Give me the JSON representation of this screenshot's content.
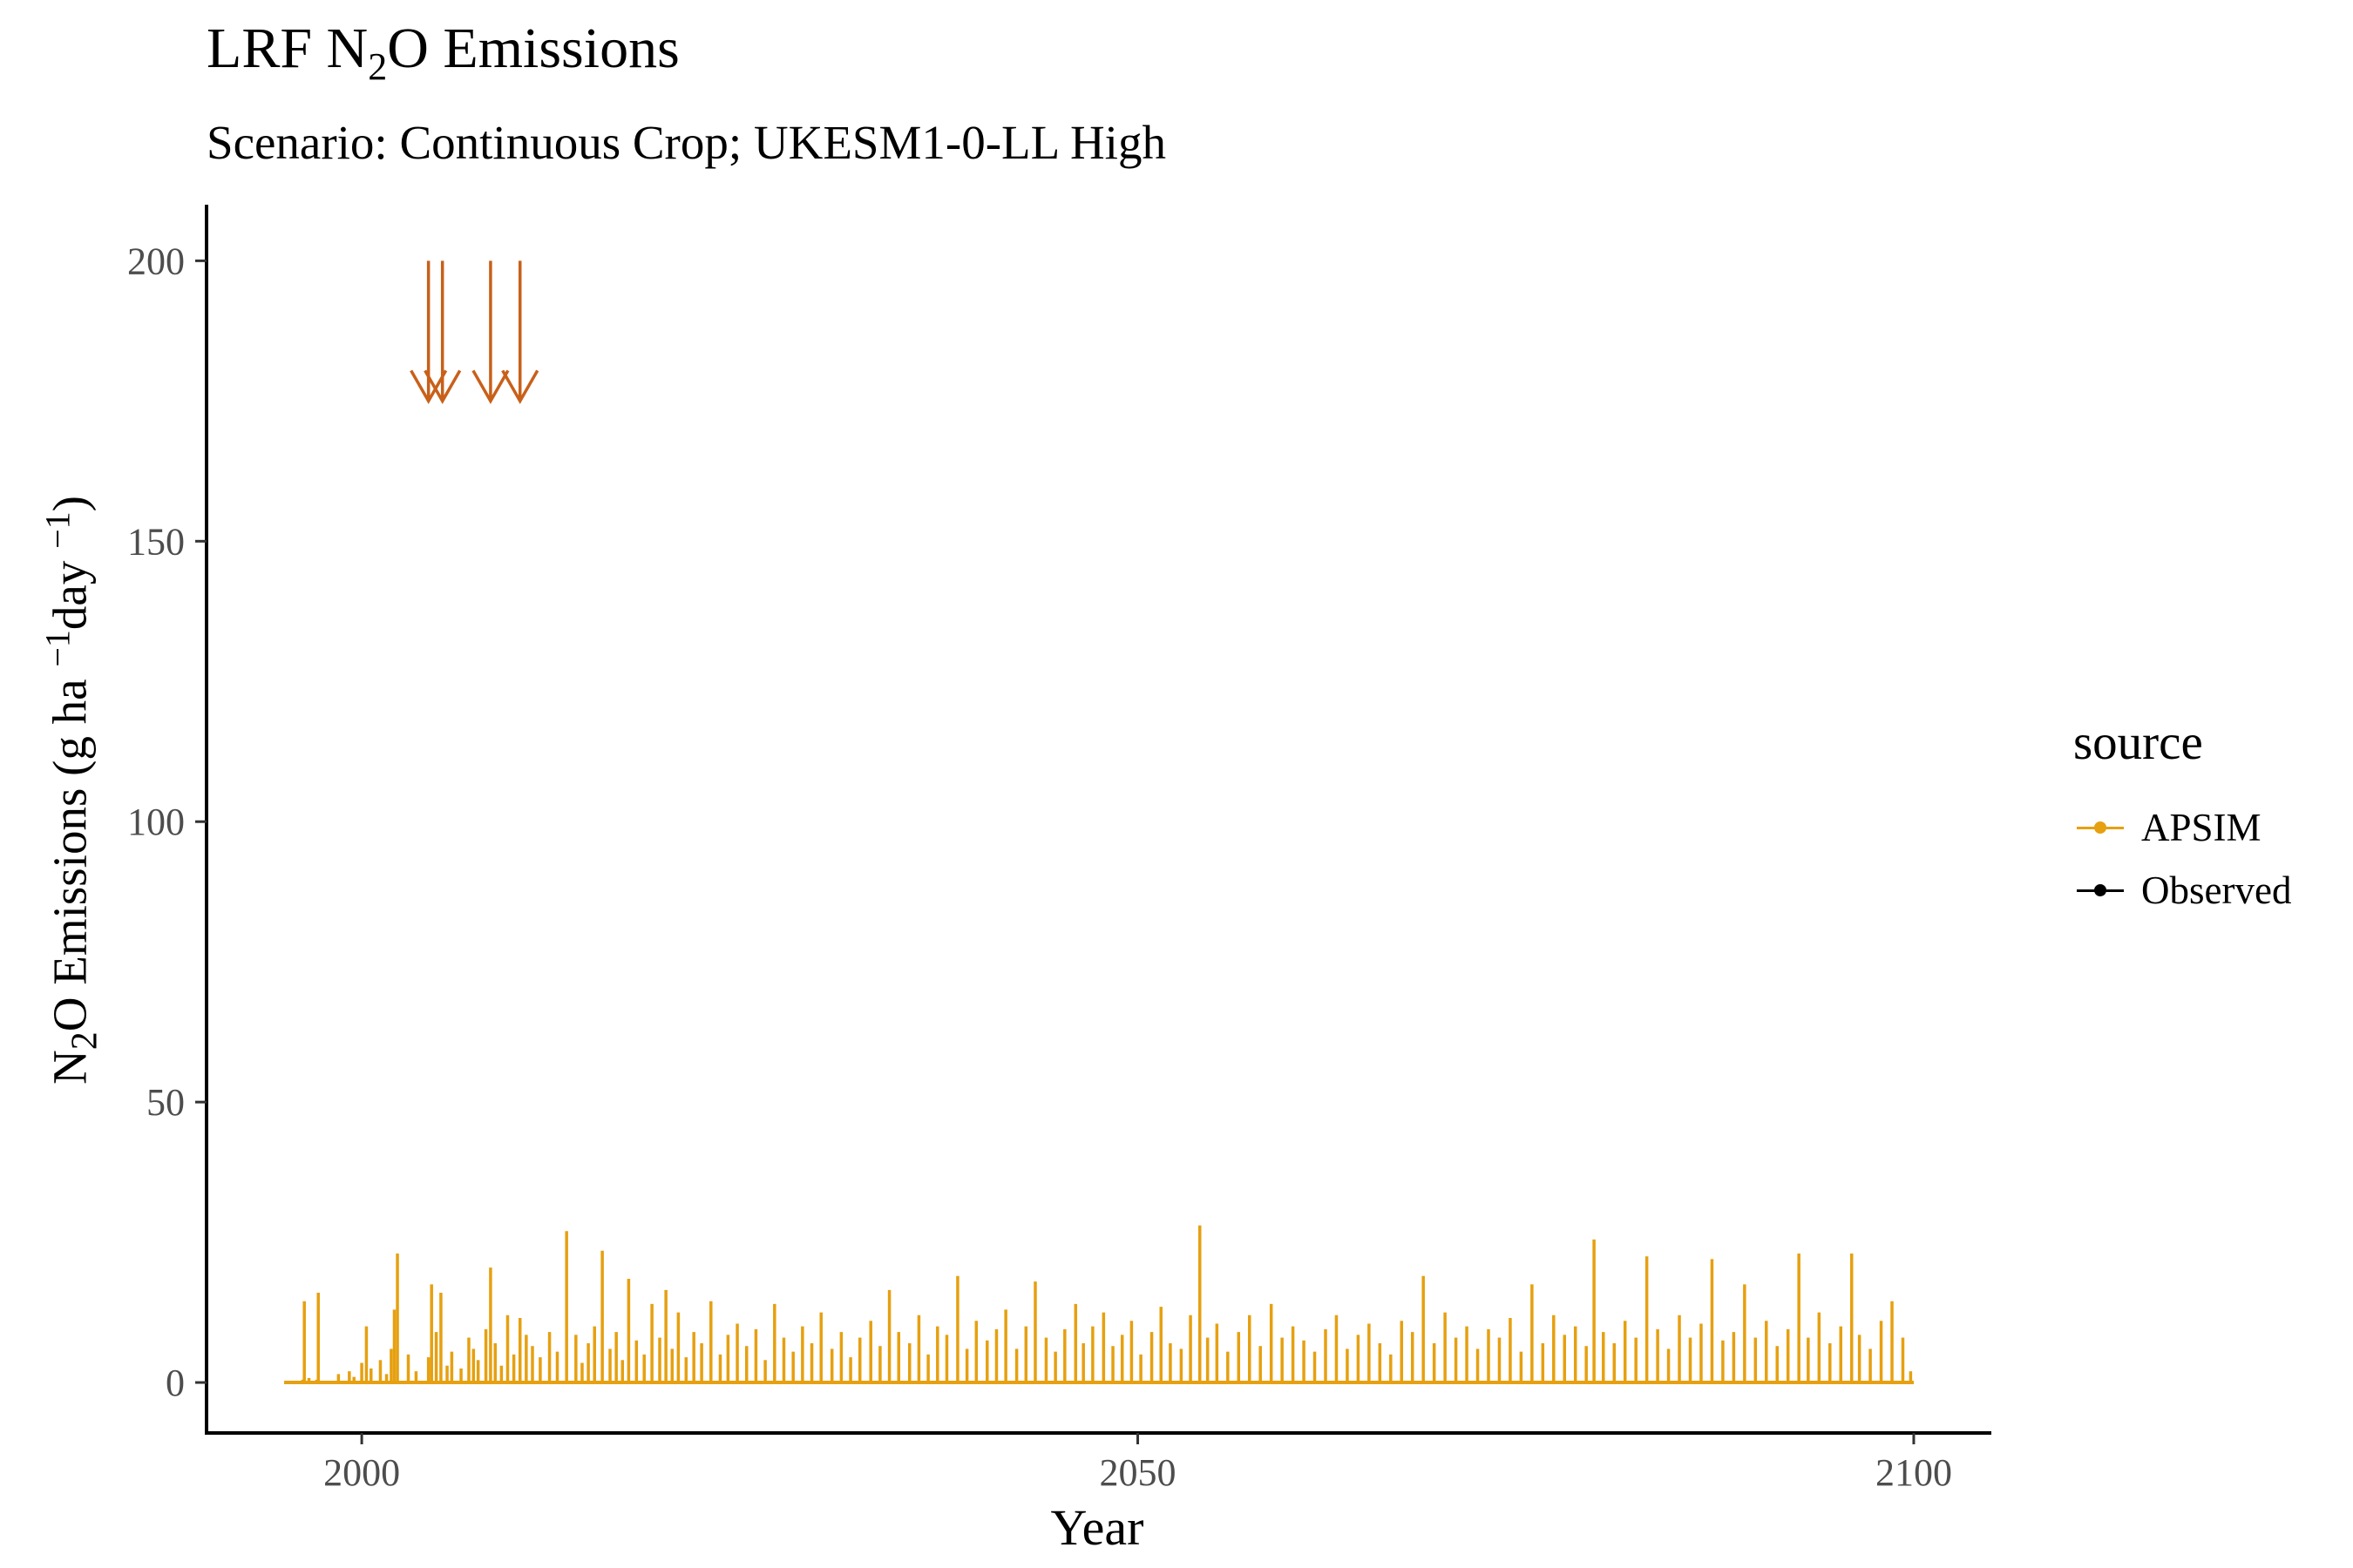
{
  "title": {
    "prefix": "LRF N",
    "subscript": "2",
    "suffix": "O Emissions"
  },
  "subtitle": "Scenario: Continuous Crop; UKESM1-0-LL High",
  "y_axis_label": {
    "part1": "N",
    "sub": "2",
    "part2": "O Emissions (g ha ",
    "sup1": "−1",
    "part3": "day ",
    "sup2": "−1",
    "part4": ")"
  },
  "x_axis_label": "Year",
  "legend": {
    "title": "source",
    "items": [
      {
        "label": "APSIM",
        "color": "#E6A010"
      },
      {
        "label": "Observed",
        "color": "#000000"
      }
    ]
  },
  "chart_data": {
    "type": "line",
    "x_range": [
      1990,
      2105
    ],
    "y_range": [
      -9,
      210
    ],
    "x_ticks": [
      {
        "value": 2000,
        "label": "2000"
      },
      {
        "value": 2050,
        "label": "2050"
      },
      {
        "value": 2100,
        "label": "2100"
      }
    ],
    "y_ticks": [
      {
        "value": 0,
        "label": "0"
      },
      {
        "value": 50,
        "label": "50"
      },
      {
        "value": 100,
        "label": "100"
      },
      {
        "value": 150,
        "label": "150"
      },
      {
        "value": 200,
        "label": "200"
      }
    ],
    "grid": false,
    "legend_position": "right",
    "series": [
      {
        "name": "APSIM",
        "color": "#E6A010",
        "x": [
          1995.0,
          1996.2,
          1996.3,
          1996.6,
          1997.1,
          1997.2,
          1998.5,
          1999.2,
          1999.5,
          2000.0,
          2000.3,
          2000.6,
          2001.2,
          2001.6,
          2001.9,
          2002.1,
          2002.3,
          2003.0,
          2003.5,
          2004.3,
          2004.5,
          2004.8,
          2005.1,
          2005.5,
          2005.8,
          2006.4,
          2006.9,
          2007.2,
          2007.5,
          2008.0,
          2008.3,
          2008.6,
          2009.0,
          2009.4,
          2009.8,
          2010.2,
          2010.6,
          2011.0,
          2011.5,
          2012.1,
          2012.6,
          2013.2,
          2013.8,
          2014.2,
          2014.6,
          2015.0,
          2015.5,
          2016.0,
          2016.4,
          2016.8,
          2017.2,
          2017.7,
          2018.2,
          2018.7,
          2019.2,
          2019.6,
          2020.0,
          2020.4,
          2020.9,
          2021.4,
          2021.9,
          2022.5,
          2023.1,
          2023.6,
          2024.2,
          2024.8,
          2025.4,
          2026.0,
          2026.6,
          2027.2,
          2027.8,
          2028.4,
          2029.0,
          2029.6,
          2030.3,
          2030.9,
          2031.5,
          2032.1,
          2032.8,
          2033.4,
          2034.0,
          2034.6,
          2035.3,
          2035.9,
          2036.5,
          2037.1,
          2037.7,
          2038.4,
          2039.0,
          2039.6,
          2040.3,
          2040.9,
          2041.5,
          2042.2,
          2042.8,
          2043.4,
          2044.1,
          2044.7,
          2045.3,
          2046.0,
          2046.5,
          2047.1,
          2047.8,
          2048.4,
          2049.0,
          2049.6,
          2050.2,
          2050.9,
          2051.5,
          2052.1,
          2052.8,
          2053.4,
          2054.0,
          2054.5,
          2055.1,
          2055.8,
          2056.5,
          2057.2,
          2057.9,
          2058.6,
          2059.3,
          2060.0,
          2060.7,
          2061.4,
          2062.1,
          2062.8,
          2063.5,
          2064.2,
          2064.9,
          2065.6,
          2066.3,
          2067.0,
          2067.7,
          2068.4,
          2069.1,
          2069.8,
          2070.5,
          2071.2,
          2071.9,
          2072.6,
          2073.3,
          2074.0,
          2074.7,
          2075.4,
          2076.1,
          2076.8,
          2077.5,
          2078.2,
          2078.9,
          2079.4,
          2080.0,
          2080.7,
          2081.4,
          2082.1,
          2082.8,
          2083.5,
          2084.2,
          2084.9,
          2085.6,
          2086.3,
          2087.0,
          2087.7,
          2088.4,
          2089.1,
          2089.8,
          2090.5,
          2091.2,
          2091.9,
          2092.6,
          2093.2,
          2093.9,
          2094.6,
          2095.3,
          2096.0,
          2096.5,
          2097.2,
          2097.9,
          2098.6,
          2099.3,
          2099.8,
          2100.0
        ],
        "y": [
          0,
          0.5,
          14.5,
          0.8,
          0.5,
          16.0,
          1.5,
          2.0,
          1.0,
          3.5,
          10.0,
          2.5,
          4.0,
          1.5,
          6.0,
          13.0,
          23.0,
          5.0,
          2.0,
          4.5,
          17.5,
          9.0,
          16.0,
          3.0,
          5.5,
          2.5,
          8.0,
          6.0,
          4.0,
          9.5,
          20.5,
          7.0,
          3.0,
          12.0,
          5.0,
          11.5,
          8.5,
          6.5,
          4.5,
          9.0,
          5.5,
          27.0,
          8.5,
          3.5,
          7.0,
          10.0,
          23.5,
          6.0,
          9.0,
          4.0,
          18.5,
          7.5,
          5.0,
          14.0,
          8.0,
          16.5,
          6.0,
          12.5,
          4.5,
          9.0,
          7.0,
          14.5,
          5.0,
          8.5,
          10.5,
          6.5,
          9.5,
          4.0,
          14.0,
          8.0,
          5.5,
          10.0,
          7.0,
          12.5,
          6.0,
          9.0,
          4.5,
          8.0,
          11.0,
          6.5,
          16.5,
          9.0,
          7.0,
          12.0,
          5.0,
          10.0,
          8.5,
          19.0,
          6.0,
          11.0,
          7.5,
          9.5,
          13.0,
          6.0,
          10.0,
          18.0,
          8.0,
          5.5,
          9.5,
          14.0,
          7.0,
          10.0,
          12.5,
          6.5,
          8.5,
          11.0,
          5.0,
          9.0,
          13.5,
          7.0,
          6.0,
          12.0,
          28.0,
          8.0,
          10.5,
          5.5,
          9.0,
          12.0,
          6.5,
          14.0,
          8.0,
          10.0,
          7.5,
          5.5,
          9.5,
          12.0,
          6.0,
          8.5,
          10.5,
          7.0,
          5.0,
          11.0,
          9.0,
          19.0,
          7.0,
          12.5,
          8.0,
          10.0,
          6.0,
          9.5,
          8.0,
          11.5,
          5.5,
          17.5,
          7.0,
          12.0,
          8.5,
          10.0,
          6.5,
          25.5,
          9.0,
          7.0,
          11.0,
          8.0,
          22.5,
          9.5,
          6.0,
          12.0,
          8.0,
          10.5,
          22.0,
          7.5,
          9.0,
          17.5,
          8.0,
          11.0,
          6.5,
          9.5,
          23.0,
          8.0,
          12.5,
          7.0,
          10.0,
          23.0,
          8.5,
          6.0,
          11.0,
          14.5,
          8.0,
          2.0,
          0
        ]
      },
      {
        "name": "Observed",
        "color": "#000000",
        "x": [],
        "y": []
      }
    ],
    "annotations": {
      "type": "arrows",
      "color": "#C8601A",
      "x": [
        2004.3,
        2005.2,
        2008.3,
        2010.2
      ],
      "y_start": 200,
      "y_end": 175
    }
  }
}
